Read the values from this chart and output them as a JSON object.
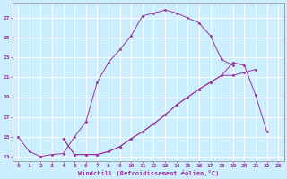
{
  "xlabel": "Windchill (Refroidissement éolien,°C)",
  "background_color": "#cceeff",
  "grid_color": "#ffffff",
  "line_color": "#993399",
  "xlim": [
    -0.5,
    23.5
  ],
  "ylim": [
    12.5,
    28.5
  ],
  "xticks": [
    0,
    1,
    2,
    3,
    4,
    5,
    6,
    7,
    8,
    9,
    10,
    11,
    12,
    13,
    14,
    15,
    16,
    17,
    18,
    19,
    20,
    21,
    22,
    23
  ],
  "yticks": [
    13,
    15,
    17,
    19,
    21,
    23,
    25,
    27
  ],
  "line1_x": [
    0,
    1,
    2,
    3,
    4,
    5,
    6,
    7,
    8,
    9,
    10,
    11,
    12,
    13,
    14,
    15,
    16,
    17,
    18,
    19
  ],
  "line1_y": [
    15.0,
    13.5,
    13.0,
    13.2,
    13.3,
    15.0,
    16.5,
    20.5,
    22.5,
    23.8,
    25.2,
    27.2,
    27.5,
    27.8,
    27.5,
    27.0,
    26.5,
    25.2,
    22.8,
    22.2
  ],
  "line2_x": [
    4,
    5,
    6,
    7,
    8,
    9,
    10,
    11,
    12,
    13,
    14,
    15,
    16,
    17,
    18,
    19,
    20,
    21
  ],
  "line2_y": [
    14.8,
    13.2,
    13.2,
    13.2,
    13.5,
    14.0,
    14.8,
    15.5,
    16.3,
    17.2,
    18.2,
    19.0,
    19.8,
    20.5,
    21.2,
    21.2,
    21.5,
    21.8
  ],
  "line3_x": [
    4,
    5,
    6,
    7,
    8,
    9,
    10,
    11,
    12,
    13,
    14,
    15,
    16,
    17,
    18,
    19,
    20,
    21,
    22
  ],
  "line3_y": [
    14.8,
    13.2,
    13.2,
    13.2,
    13.5,
    14.0,
    14.8,
    15.5,
    16.3,
    17.2,
    18.2,
    19.0,
    19.8,
    20.5,
    21.2,
    22.5,
    22.2,
    19.2,
    15.5
  ]
}
